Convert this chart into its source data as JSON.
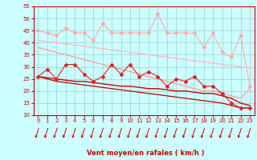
{
  "x": [
    0,
    1,
    2,
    3,
    4,
    5,
    6,
    7,
    8,
    9,
    10,
    11,
    12,
    13,
    14,
    15,
    16,
    17,
    18,
    19,
    20,
    21,
    22,
    23
  ],
  "series": [
    {
      "name": "rafales_top",
      "color": "#ffaaaa",
      "linewidth": 0.8,
      "marker": "D",
      "markersize": 2.0,
      "y": [
        45,
        44,
        43,
        46,
        44,
        44,
        41,
        48,
        44,
        44,
        44,
        44,
        44,
        52,
        44,
        44,
        44,
        44,
        38,
        44,
        36,
        34,
        43,
        22
      ]
    },
    {
      "name": "trend_top",
      "color": "#ffbbbb",
      "linewidth": 1.0,
      "marker": null,
      "markersize": 0,
      "y": [
        41,
        40.5,
        40,
        39.5,
        39,
        38.5,
        38,
        37.5,
        37,
        36.5,
        36,
        35.5,
        35,
        34.5,
        34,
        33.5,
        33,
        32.5,
        32,
        31.5,
        31,
        30.5,
        30,
        29.5
      ]
    },
    {
      "name": "trend_mid",
      "color": "#ff9999",
      "linewidth": 0.9,
      "marker": null,
      "markersize": 0,
      "y": [
        38,
        37,
        36,
        35,
        34,
        33,
        32,
        31,
        30,
        29,
        28,
        27,
        26,
        25,
        24,
        23,
        22,
        21,
        20,
        20,
        19,
        18,
        17,
        21
      ]
    },
    {
      "name": "moyen_with_marker",
      "color": "#dd2222",
      "linewidth": 0.8,
      "marker": "D",
      "markersize": 2.0,
      "y": [
        26,
        29,
        25,
        31,
        31,
        27,
        24,
        26,
        31,
        27,
        31,
        26,
        28,
        26,
        22,
        25,
        24,
        26,
        22,
        22,
        19,
        15,
        13,
        13
      ]
    },
    {
      "name": "trend_moyen1",
      "color": "#cc0000",
      "linewidth": 1.0,
      "marker": null,
      "markersize": 0,
      "y": [
        26,
        25.5,
        25,
        24.5,
        24,
        24,
        23.5,
        23,
        22.5,
        22,
        22,
        21.5,
        21,
        21,
        20.5,
        20,
        20,
        19.5,
        19,
        19,
        18,
        17,
        15,
        14
      ]
    },
    {
      "name": "trend_moyen2",
      "color": "#bb0000",
      "linewidth": 0.9,
      "marker": null,
      "markersize": 0,
      "y": [
        26,
        25,
        24,
        23.5,
        23,
        22.5,
        22,
        21.5,
        21,
        20.5,
        20,
        19.5,
        19,
        18.5,
        18,
        17.5,
        17,
        16.5,
        16,
        15.5,
        15,
        14,
        13,
        13
      ]
    }
  ],
  "xlabel": "Vent moyen/en rafales ( km/h )",
  "xlim": [
    -0.5,
    23.5
  ],
  "ylim": [
    10,
    55
  ],
  "yticks": [
    10,
    15,
    20,
    25,
    30,
    35,
    40,
    45,
    50,
    55
  ],
  "xticks": [
    0,
    1,
    2,
    3,
    4,
    5,
    6,
    7,
    8,
    9,
    10,
    11,
    12,
    13,
    14,
    15,
    16,
    17,
    18,
    19,
    20,
    21,
    22,
    23
  ],
  "bg_color": "#ccffff",
  "grid_color": "#99cccc",
  "axis_color": "#cc0000",
  "tick_color": "#cc0000",
  "label_color": "#cc0000",
  "arrow_color": "#cc0000",
  "tick_fontsize": 5,
  "xlabel_fontsize": 6
}
